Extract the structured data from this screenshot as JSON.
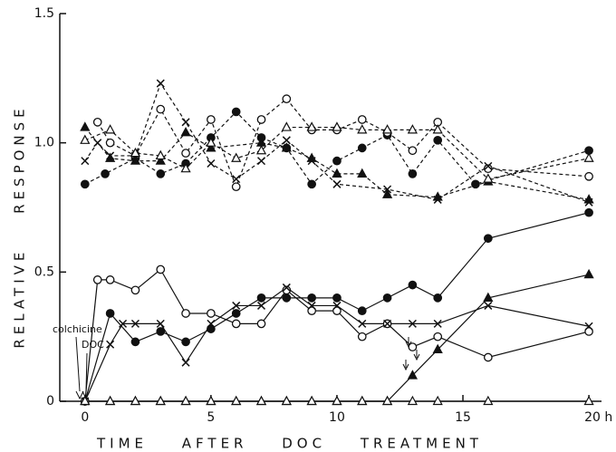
{
  "chart_data": {
    "type": "line",
    "xlabel": "TIME AFTER DOC TREATMENT",
    "ylabel": "RELATIVE RESPONSE",
    "annotations": [
      "colchicine",
      "DOC"
    ],
    "xlim": [
      -1,
      20.5
    ],
    "ylim": [
      0,
      1.5
    ],
    "xticks": [
      0,
      5,
      10,
      15,
      {
        "value": 20,
        "label": "20 h"
      }
    ],
    "yticks": [
      0,
      0.5,
      {
        "value": 1,
        "label": "1.0"
      },
      1.5
    ],
    "color": "#111111",
    "series": [
      {
        "marker": "filled-circle",
        "dashed": true,
        "x": [
          0,
          0.8,
          2,
          3,
          4,
          5,
          6,
          7,
          8,
          9,
          10,
          11,
          12,
          13,
          14,
          15.5,
          20
        ],
        "values": [
          0.84,
          0.88,
          0.94,
          0.88,
          0.92,
          1.02,
          1.12,
          1.02,
          0.98,
          0.84,
          0.93,
          0.98,
          1.03,
          0.88,
          1.01,
          0.84,
          0.97
        ]
      },
      {
        "marker": "open-circle",
        "dashed": true,
        "x": [
          0.5,
          1,
          2,
          3,
          4,
          5,
          6,
          7,
          8,
          9,
          10,
          11,
          12,
          13,
          14,
          16,
          20
        ],
        "values": [
          1.08,
          1.0,
          0.95,
          1.13,
          0.96,
          1.09,
          0.83,
          1.09,
          1.17,
          1.05,
          1.05,
          1.09,
          1.04,
          0.97,
          1.08,
          0.9,
          0.87
        ]
      },
      {
        "marker": "cross",
        "dashed": true,
        "x": [
          0,
          0.5,
          1,
          2,
          3,
          4,
          5,
          6,
          7,
          8,
          9,
          10,
          12,
          14,
          16,
          20
        ],
        "values": [
          0.93,
          1.0,
          0.95,
          0.95,
          1.23,
          1.08,
          0.92,
          0.86,
          0.93,
          1.01,
          0.93,
          0.84,
          0.82,
          0.78,
          0.91,
          0.77
        ]
      },
      {
        "marker": "filled-triangle",
        "dashed": true,
        "x": [
          0,
          1,
          2,
          3,
          4,
          5,
          7,
          8,
          9,
          10,
          11,
          12,
          14,
          16,
          20
        ],
        "values": [
          1.06,
          0.94,
          0.93,
          0.93,
          1.04,
          0.98,
          1.0,
          0.98,
          0.94,
          0.88,
          0.88,
          0.8,
          0.79,
          0.85,
          0.78
        ]
      },
      {
        "marker": "open-triangle",
        "dashed": true,
        "x": [
          0,
          1,
          2,
          3,
          4,
          5,
          6,
          7,
          8,
          9,
          10,
          11,
          12,
          13,
          14,
          16,
          20
        ],
        "values": [
          1.01,
          1.05,
          0.96,
          0.95,
          0.9,
          1.0,
          0.94,
          0.97,
          1.06,
          1.06,
          1.06,
          1.05,
          1.05,
          1.05,
          1.05,
          0.86,
          0.94
        ]
      },
      {
        "marker": "filled-circle",
        "dashed": false,
        "x": [
          0,
          1,
          2,
          3,
          4,
          5,
          6,
          7,
          8,
          9,
          10,
          11,
          12,
          13,
          14,
          16,
          20
        ],
        "values": [
          0,
          0.34,
          0.23,
          0.27,
          0.23,
          0.28,
          0.34,
          0.4,
          0.4,
          0.4,
          0.4,
          0.35,
          0.4,
          0.45,
          0.4,
          0.63,
          0.73
        ]
      },
      {
        "marker": "open-circle",
        "dashed": false,
        "x": [
          0,
          0.5,
          1,
          2,
          3,
          4,
          5,
          6,
          7,
          8,
          9,
          10,
          11,
          12,
          13,
          14,
          16,
          20
        ],
        "values": [
          0,
          0.47,
          0.47,
          0.43,
          0.51,
          0.34,
          0.34,
          0.3,
          0.3,
          0.43,
          0.35,
          0.35,
          0.25,
          0.3,
          0.21,
          0.25,
          0.17,
          0.27
        ]
      },
      {
        "marker": "cross",
        "dashed": false,
        "x": [
          0,
          1,
          1.5,
          2,
          3,
          4,
          5,
          6,
          7,
          8,
          9,
          10,
          11,
          12,
          13,
          14,
          16,
          20
        ],
        "values": [
          0,
          0.22,
          0.3,
          0.3,
          0.3,
          0.15,
          0.3,
          0.37,
          0.37,
          0.44,
          0.37,
          0.37,
          0.3,
          0.3,
          0.3,
          0.3,
          0.37,
          0.29
        ]
      },
      {
        "marker": "filled-triangle",
        "dashed": false,
        "x": [
          0,
          1,
          2,
          3,
          4,
          5,
          6,
          7,
          8,
          9,
          10,
          11,
          12,
          13,
          14,
          16,
          20
        ],
        "values": [
          0,
          0,
          0,
          0,
          0,
          0,
          0,
          0,
          0,
          0,
          0,
          0,
          0,
          0.1,
          0.2,
          0.4,
          0.49
        ]
      },
      {
        "marker": "open-triangle",
        "dashed": false,
        "x": [
          0,
          1,
          2,
          3,
          4,
          5,
          6,
          7,
          8,
          9,
          10,
          11,
          12,
          13,
          14,
          16,
          20
        ],
        "values": [
          0,
          0,
          0,
          0,
          0,
          0,
          0,
          0,
          0,
          0,
          0,
          0,
          0,
          0,
          0,
          0,
          0
        ]
      }
    ]
  }
}
